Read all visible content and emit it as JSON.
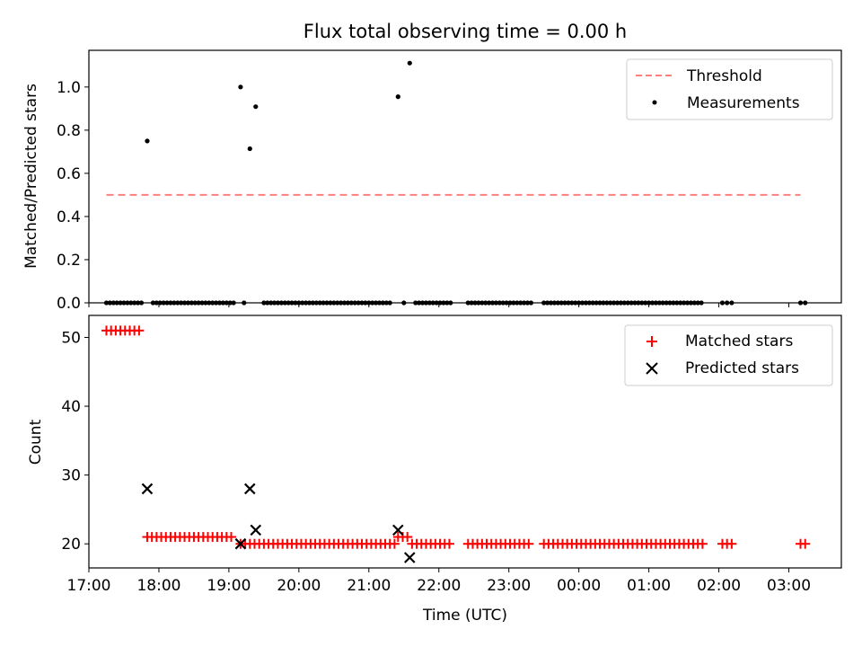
{
  "chart_data": [
    {
      "type": "scatter",
      "title": "Flux total observing time = 0.00 h",
      "xlabel": "",
      "ylabel": "Matched/Predicted stars",
      "xlim": [
        "17:00",
        "03:45"
      ],
      "ylim": [
        0,
        1.17
      ],
      "yticks": [
        "0.0",
        "0.2",
        "0.4",
        "0.6",
        "0.8",
        "1.0"
      ],
      "legend_position": "upper right",
      "series": [
        {
          "name": "Threshold",
          "kind": "dashed-line",
          "color": "#ff7f7f",
          "x": [
            "17:15",
            "03:10"
          ],
          "y": [
            0.5,
            0.5
          ]
        },
        {
          "name": "Measurements",
          "kind": "dots",
          "color": "#000000",
          "x": [
            "17:50",
            "19:10",
            "19:18",
            "19:23",
            "21:25",
            "21:35",
            "17:15",
            "17:18",
            "17:21",
            "17:24",
            "17:27",
            "17:30",
            "17:33",
            "17:36",
            "17:39",
            "17:42",
            "17:45",
            "17:55",
            "17:58",
            "18:01",
            "18:04",
            "18:07",
            "18:10",
            "18:13",
            "18:16",
            "18:19",
            "18:22",
            "18:25",
            "18:28",
            "18:31",
            "18:34",
            "18:37",
            "18:40",
            "18:43",
            "18:46",
            "18:49",
            "18:52",
            "18:55",
            "18:58",
            "19:01",
            "19:04",
            "19:13",
            "19:30",
            "19:33",
            "19:36",
            "19:39",
            "19:42",
            "19:45",
            "19:48",
            "19:51",
            "19:54",
            "19:57",
            "20:00",
            "20:03",
            "20:06",
            "20:09",
            "20:12",
            "20:15",
            "20:18",
            "20:21",
            "20:24",
            "20:27",
            "20:30",
            "20:33",
            "20:36",
            "20:39",
            "20:42",
            "20:45",
            "20:48",
            "20:51",
            "20:54",
            "20:57",
            "21:00",
            "21:03",
            "21:06",
            "21:09",
            "21:12",
            "21:15",
            "21:18",
            "21:30",
            "21:40",
            "21:43",
            "21:46",
            "21:49",
            "21:52",
            "21:55",
            "21:58",
            "22:01",
            "22:04",
            "22:07",
            "22:10",
            "22:25",
            "22:28",
            "22:31",
            "22:34",
            "22:37",
            "22:40",
            "22:43",
            "22:46",
            "22:49",
            "22:52",
            "22:55",
            "22:58",
            "23:01",
            "23:04",
            "23:07",
            "23:10",
            "23:13",
            "23:16",
            "23:19",
            "23:30",
            "23:33",
            "23:36",
            "23:39",
            "23:42",
            "23:45",
            "23:48",
            "23:51",
            "23:54",
            "23:57",
            "00:00",
            "00:03",
            "00:06",
            "00:09",
            "00:12",
            "00:15",
            "00:18",
            "00:21",
            "00:24",
            "00:27",
            "00:30",
            "00:33",
            "00:36",
            "00:39",
            "00:42",
            "00:45",
            "00:48",
            "00:51",
            "00:54",
            "00:57",
            "01:00",
            "01:03",
            "01:06",
            "01:09",
            "01:12",
            "01:15",
            "01:18",
            "01:21",
            "01:24",
            "01:27",
            "01:30",
            "01:33",
            "01:36",
            "01:39",
            "01:42",
            "01:45",
            "02:03",
            "02:07",
            "02:11",
            "03:10",
            "03:14"
          ],
          "y": [
            0.75,
            1.0,
            0.714,
            0.909,
            0.955,
            1.111,
            0,
            0,
            0,
            0,
            0,
            0,
            0,
            0,
            0,
            0,
            0,
            0,
            0,
            0,
            0,
            0,
            0,
            0,
            0,
            0,
            0,
            0,
            0,
            0,
            0,
            0,
            0,
            0,
            0,
            0,
            0,
            0,
            0,
            0,
            0,
            0,
            0,
            0,
            0,
            0,
            0,
            0,
            0,
            0,
            0,
            0,
            0,
            0,
            0,
            0,
            0,
            0,
            0,
            0,
            0,
            0,
            0,
            0,
            0,
            0,
            0,
            0,
            0,
            0,
            0,
            0,
            0,
            0,
            0,
            0,
            0,
            0,
            0,
            0,
            0,
            0,
            0,
            0,
            0,
            0,
            0,
            0,
            0,
            0,
            0,
            0,
            0,
            0,
            0,
            0,
            0,
            0,
            0,
            0,
            0,
            0,
            0,
            0,
            0,
            0,
            0,
            0,
            0,
            0,
            0,
            0,
            0,
            0,
            0,
            0,
            0,
            0,
            0,
            0,
            0,
            0,
            0,
            0,
            0,
            0,
            0,
            0,
            0,
            0,
            0,
            0,
            0,
            0,
            0,
            0,
            0,
            0,
            0,
            0,
            0,
            0,
            0,
            0,
            0,
            0,
            0,
            0,
            0,
            0,
            0,
            0,
            0,
            0,
            0,
            0,
            0,
            0,
            0,
            0,
            0
          ]
        }
      ]
    },
    {
      "type": "scatter",
      "title": "",
      "xlabel": "Time (UTC)",
      "ylabel": "Count",
      "xlim": [
        "17:00",
        "03:45"
      ],
      "ylim": [
        16.5,
        53.2
      ],
      "yticks": [
        "20",
        "30",
        "40",
        "50"
      ],
      "xticks": [
        "17:00",
        "18:00",
        "19:00",
        "20:00",
        "21:00",
        "22:00",
        "23:00",
        "00:00",
        "01:00",
        "02:00",
        "03:00"
      ],
      "legend_position": "upper right",
      "series": [
        {
          "name": "Matched stars",
          "kind": "plus",
          "color": "#ff0000",
          "x": [
            "17:15",
            "17:19",
            "17:23",
            "17:27",
            "17:31",
            "17:35",
            "17:39",
            "17:43",
            "17:50",
            "17:54",
            "17:58",
            "18:02",
            "18:06",
            "18:10",
            "18:14",
            "18:18",
            "18:22",
            "18:26",
            "18:30",
            "18:34",
            "18:38",
            "18:42",
            "18:46",
            "18:50",
            "18:54",
            "18:58",
            "19:02",
            "19:10",
            "19:14",
            "19:18",
            "19:22",
            "19:26",
            "19:30",
            "19:34",
            "19:38",
            "19:42",
            "19:46",
            "19:50",
            "19:54",
            "19:58",
            "20:02",
            "20:06",
            "20:10",
            "20:14",
            "20:18",
            "20:22",
            "20:26",
            "20:30",
            "20:34",
            "20:38",
            "20:42",
            "20:46",
            "20:50",
            "20:54",
            "20:58",
            "21:02",
            "21:06",
            "21:10",
            "21:14",
            "21:18",
            "21:22",
            "21:25",
            "21:29",
            "21:33",
            "21:37",
            "21:41",
            "21:45",
            "21:49",
            "21:53",
            "21:57",
            "22:01",
            "22:05",
            "22:09",
            "22:25",
            "22:29",
            "22:33",
            "22:37",
            "22:41",
            "22:45",
            "22:49",
            "22:53",
            "22:57",
            "23:01",
            "23:05",
            "23:09",
            "23:13",
            "23:17",
            "23:30",
            "23:34",
            "23:38",
            "23:42",
            "23:46",
            "23:50",
            "23:54",
            "23:58",
            "00:02",
            "00:06",
            "00:10",
            "00:14",
            "00:18",
            "00:22",
            "00:26",
            "00:30",
            "00:34",
            "00:38",
            "00:42",
            "00:46",
            "00:50",
            "00:54",
            "00:58",
            "01:02",
            "01:06",
            "01:10",
            "01:14",
            "01:18",
            "01:22",
            "01:26",
            "01:30",
            "01:34",
            "01:38",
            "01:42",
            "01:46",
            "02:03",
            "02:07",
            "02:11",
            "03:10",
            "03:14"
          ],
          "y": [
            51,
            51,
            51,
            51,
            51,
            51,
            51,
            51,
            21,
            21,
            21,
            21,
            21,
            21,
            21,
            21,
            21,
            21,
            21,
            21,
            21,
            21,
            21,
            21,
            21,
            21,
            21,
            20,
            20,
            20,
            20,
            20,
            20,
            20,
            20,
            20,
            20,
            20,
            20,
            20,
            20,
            20,
            20,
            20,
            20,
            20,
            20,
            20,
            20,
            20,
            20,
            20,
            20,
            20,
            20,
            20,
            20,
            20,
            20,
            20,
            20,
            21,
            21,
            21,
            20,
            20,
            20,
            20,
            20,
            20,
            20,
            20,
            20,
            20,
            20,
            20,
            20,
            20,
            20,
            20,
            20,
            20,
            20,
            20,
            20,
            20,
            20,
            20,
            20,
            20,
            20,
            20,
            20,
            20,
            20,
            20,
            20,
            20,
            20,
            20,
            20,
            20,
            20,
            20,
            20,
            20,
            20,
            20,
            20,
            20,
            20,
            20,
            20,
            20,
            20,
            20,
            20,
            20,
            20,
            20,
            20,
            20,
            20,
            20,
            20,
            20,
            20
          ]
        },
        {
          "name": "Predicted stars",
          "kind": "x",
          "color": "#000000",
          "x": [
            "17:50",
            "19:10",
            "19:18",
            "19:23",
            "21:25",
            "21:35"
          ],
          "y": [
            28,
            20,
            28,
            22,
            22,
            18
          ]
        }
      ]
    }
  ]
}
